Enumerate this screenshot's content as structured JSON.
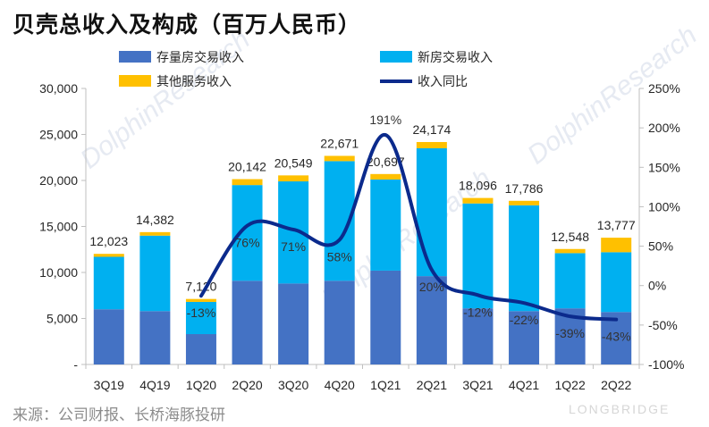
{
  "title": "贝壳总收入及构成（百万人民币）",
  "source": "来源：公司财报、长桥海豚投研",
  "watermark": {
    "brand": "LONGBRIDGE"
  },
  "colors": {
    "existing": "#4472c4",
    "new": "#00b0f0",
    "other": "#ffc000",
    "yoy": "#0b2a8c"
  },
  "chart_data": {
    "type": "bar",
    "stacked": true,
    "categories": [
      "3Q19",
      "4Q19",
      "1Q20",
      "2Q20",
      "3Q20",
      "4Q20",
      "1Q21",
      "2Q21",
      "3Q21",
      "4Q21",
      "1Q22",
      "2Q22"
    ],
    "series": [
      {
        "name": "存量房交易收入",
        "values": [
          6000,
          5800,
          3300,
          9100,
          8800,
          9100,
          10200,
          9600,
          6100,
          5800,
          6100,
          5700
        ]
      },
      {
        "name": "新房交易收入",
        "values": [
          5700,
          8200,
          3500,
          10400,
          11100,
          13000,
          9900,
          13900,
          11400,
          11500,
          6000,
          6500
        ]
      },
      {
        "name": "其他服务收入",
        "values": [
          323,
          382,
          320,
          642,
          649,
          571,
          597,
          674,
          596,
          486,
          448,
          1577
        ]
      }
    ],
    "totals": [
      "12,023",
      "14,382",
      "7,120",
      "20,142",
      "20,549",
      "22,671",
      "20,697",
      "24,174",
      "18,096",
      "17,786",
      "12,548",
      "13,777"
    ],
    "secondary": {
      "name": "收入同比",
      "type": "line",
      "values": [
        null,
        null,
        -13,
        76,
        71,
        58,
        191,
        20,
        -12,
        -22,
        -39,
        -43
      ],
      "labels": [
        "",
        "",
        "-13%",
        "76%",
        "71%",
        "58%",
        "191%",
        "20%",
        "-12%",
        "-22%",
        "-39%",
        "-43%"
      ]
    },
    "y_left": {
      "min": 0,
      "max": 30000,
      "ticks": [
        "-",
        "5,000",
        "10,000",
        "15,000",
        "20,000",
        "25,000",
        "30,000"
      ]
    },
    "y_right": {
      "min": -100,
      "max": 250,
      "ticks": [
        "-100%",
        "-50%",
        "0%",
        "50%",
        "100%",
        "150%",
        "200%",
        "250%"
      ]
    },
    "legend_placement": "top",
    "grid": false
  }
}
